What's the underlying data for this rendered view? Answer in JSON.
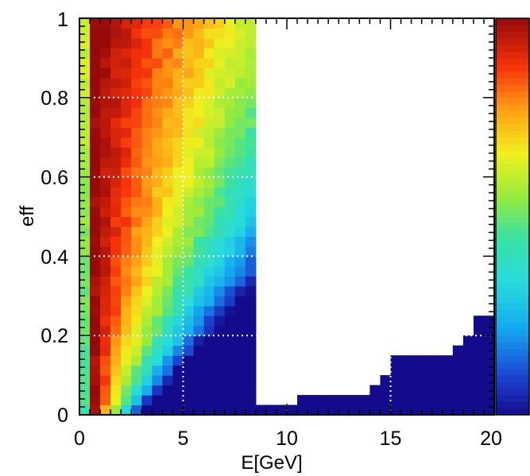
{
  "chart_data": {
    "type": "heatmap",
    "title": "",
    "xlabel": "E[GeV]",
    "ylabel": "eff",
    "xlim": [
      0,
      20
    ],
    "ylim": [
      0,
      1
    ],
    "x_ticks": [
      "0",
      "5",
      "10",
      "15",
      "20"
    ],
    "y_ticks": [
      "0",
      "0.2",
      "0.4",
      "0.6",
      "0.8",
      "1"
    ],
    "grid": true,
    "colorbar": "right",
    "colormap": "rainbow (dark blue low, dark red high)",
    "bins": {
      "nx": 40,
      "ny": 40
    },
    "description_of_values": "relative density, 0 = empty bin",
    "empty_region_start_eff": [
      1.0,
      1.0,
      1.0,
      1.0,
      1.0,
      1.0,
      1.0,
      1.0,
      1.0,
      1.0,
      1.0,
      1.0,
      1.0,
      1.0,
      1.0,
      1.0,
      1.0,
      0.02,
      0.02,
      0.02,
      0.02,
      0.04,
      0.04,
      0.06,
      0.04,
      0.06,
      0.06,
      0.06,
      0.08,
      0.1,
      0.14,
      0.14,
      0.14,
      0.14,
      0.14,
      0.16,
      0.18,
      0.2,
      0.26,
      0.26
    ]
  },
  "axes": {
    "x_title": "E[GeV]",
    "y_title": "eff"
  }
}
